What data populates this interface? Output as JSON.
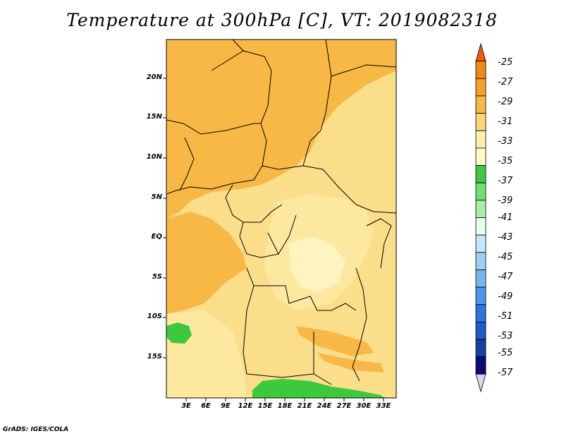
{
  "title": "Temperature at 300hPa [C], VT: 2019082318",
  "credit": "GrADS: IGES/COLA",
  "map": {
    "lat_labels": [
      "20N",
      "15N",
      "10N",
      "5N",
      "EQ",
      "5S",
      "10S",
      "15S"
    ],
    "lon_labels": [
      "3E",
      "6E",
      "9E",
      "12E",
      "15E",
      "18E",
      "21E",
      "24E",
      "27E",
      "30E",
      "33E"
    ],
    "region": "Central Africa",
    "lon_range": [
      0,
      35
    ],
    "lat_range": [
      -20,
      24
    ]
  },
  "colorbar": {
    "labels": [
      "-25",
      "-27",
      "-29",
      "-31",
      "-33",
      "-35",
      "-37",
      "-39",
      "-41",
      "-43",
      "-45",
      "-47",
      "-49",
      "-51",
      "-53",
      "-55",
      "-57"
    ],
    "colors": [
      "#f05a0a",
      "#f08a14",
      "#f5a028",
      "#f7b846",
      "#f9d574",
      "#fdf0a8",
      "#fffac8",
      "#3ec83e",
      "#6ee06e",
      "#a5f0a5",
      "#e6fff0",
      "#c8e6fa",
      "#a0cdf5",
      "#78b4f0",
      "#4b96eb",
      "#2878dc",
      "#1e5ac8",
      "#1440a0",
      "#0a0a78",
      "#d8d4f4"
    ]
  }
}
